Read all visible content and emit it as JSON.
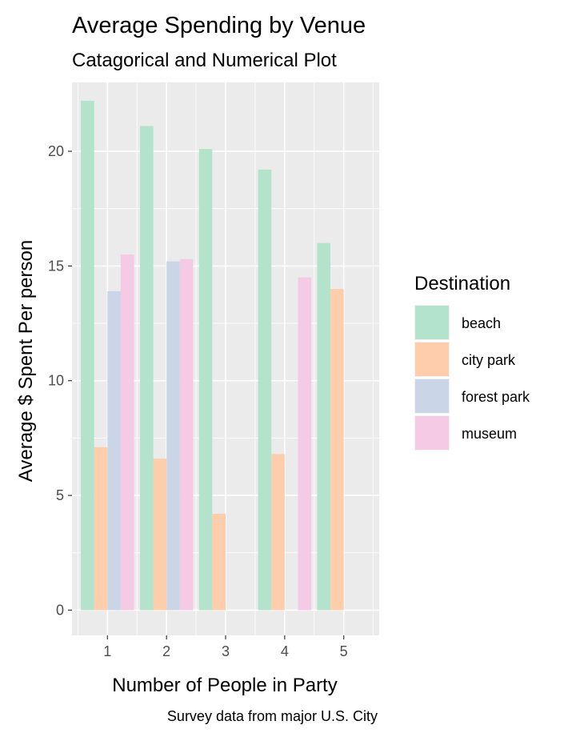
{
  "chart_data": {
    "type": "bar",
    "title": "Average Spending by Venue",
    "subtitle": "Catagorical and Numerical Plot",
    "xlabel": "Number of People in Party",
    "ylabel": "Average $ Spent Per person",
    "caption": "Survey data from major U.S. City",
    "categories": [
      "1",
      "2",
      "3",
      "4",
      "5"
    ],
    "ylim": [
      -1.1,
      23
    ],
    "yticks": [
      0,
      5,
      10,
      15,
      20
    ],
    "grid": true,
    "legend": {
      "title": "Destination",
      "position": "right"
    },
    "series": [
      {
        "name": "beach",
        "color": "#b3e2cd",
        "values": [
          22.2,
          21.1,
          20.1,
          19.2,
          16.0
        ]
      },
      {
        "name": "city park",
        "color": "#fdcdac",
        "values": [
          7.1,
          6.6,
          4.2,
          6.8,
          14.0
        ]
      },
      {
        "name": "forest park",
        "color": "#cbd5e8",
        "values": [
          13.9,
          15.2,
          null,
          null,
          null
        ]
      },
      {
        "name": "museum",
        "color": "#f4cae4",
        "values": [
          15.5,
          15.3,
          0.0,
          14.5,
          null
        ]
      }
    ]
  }
}
